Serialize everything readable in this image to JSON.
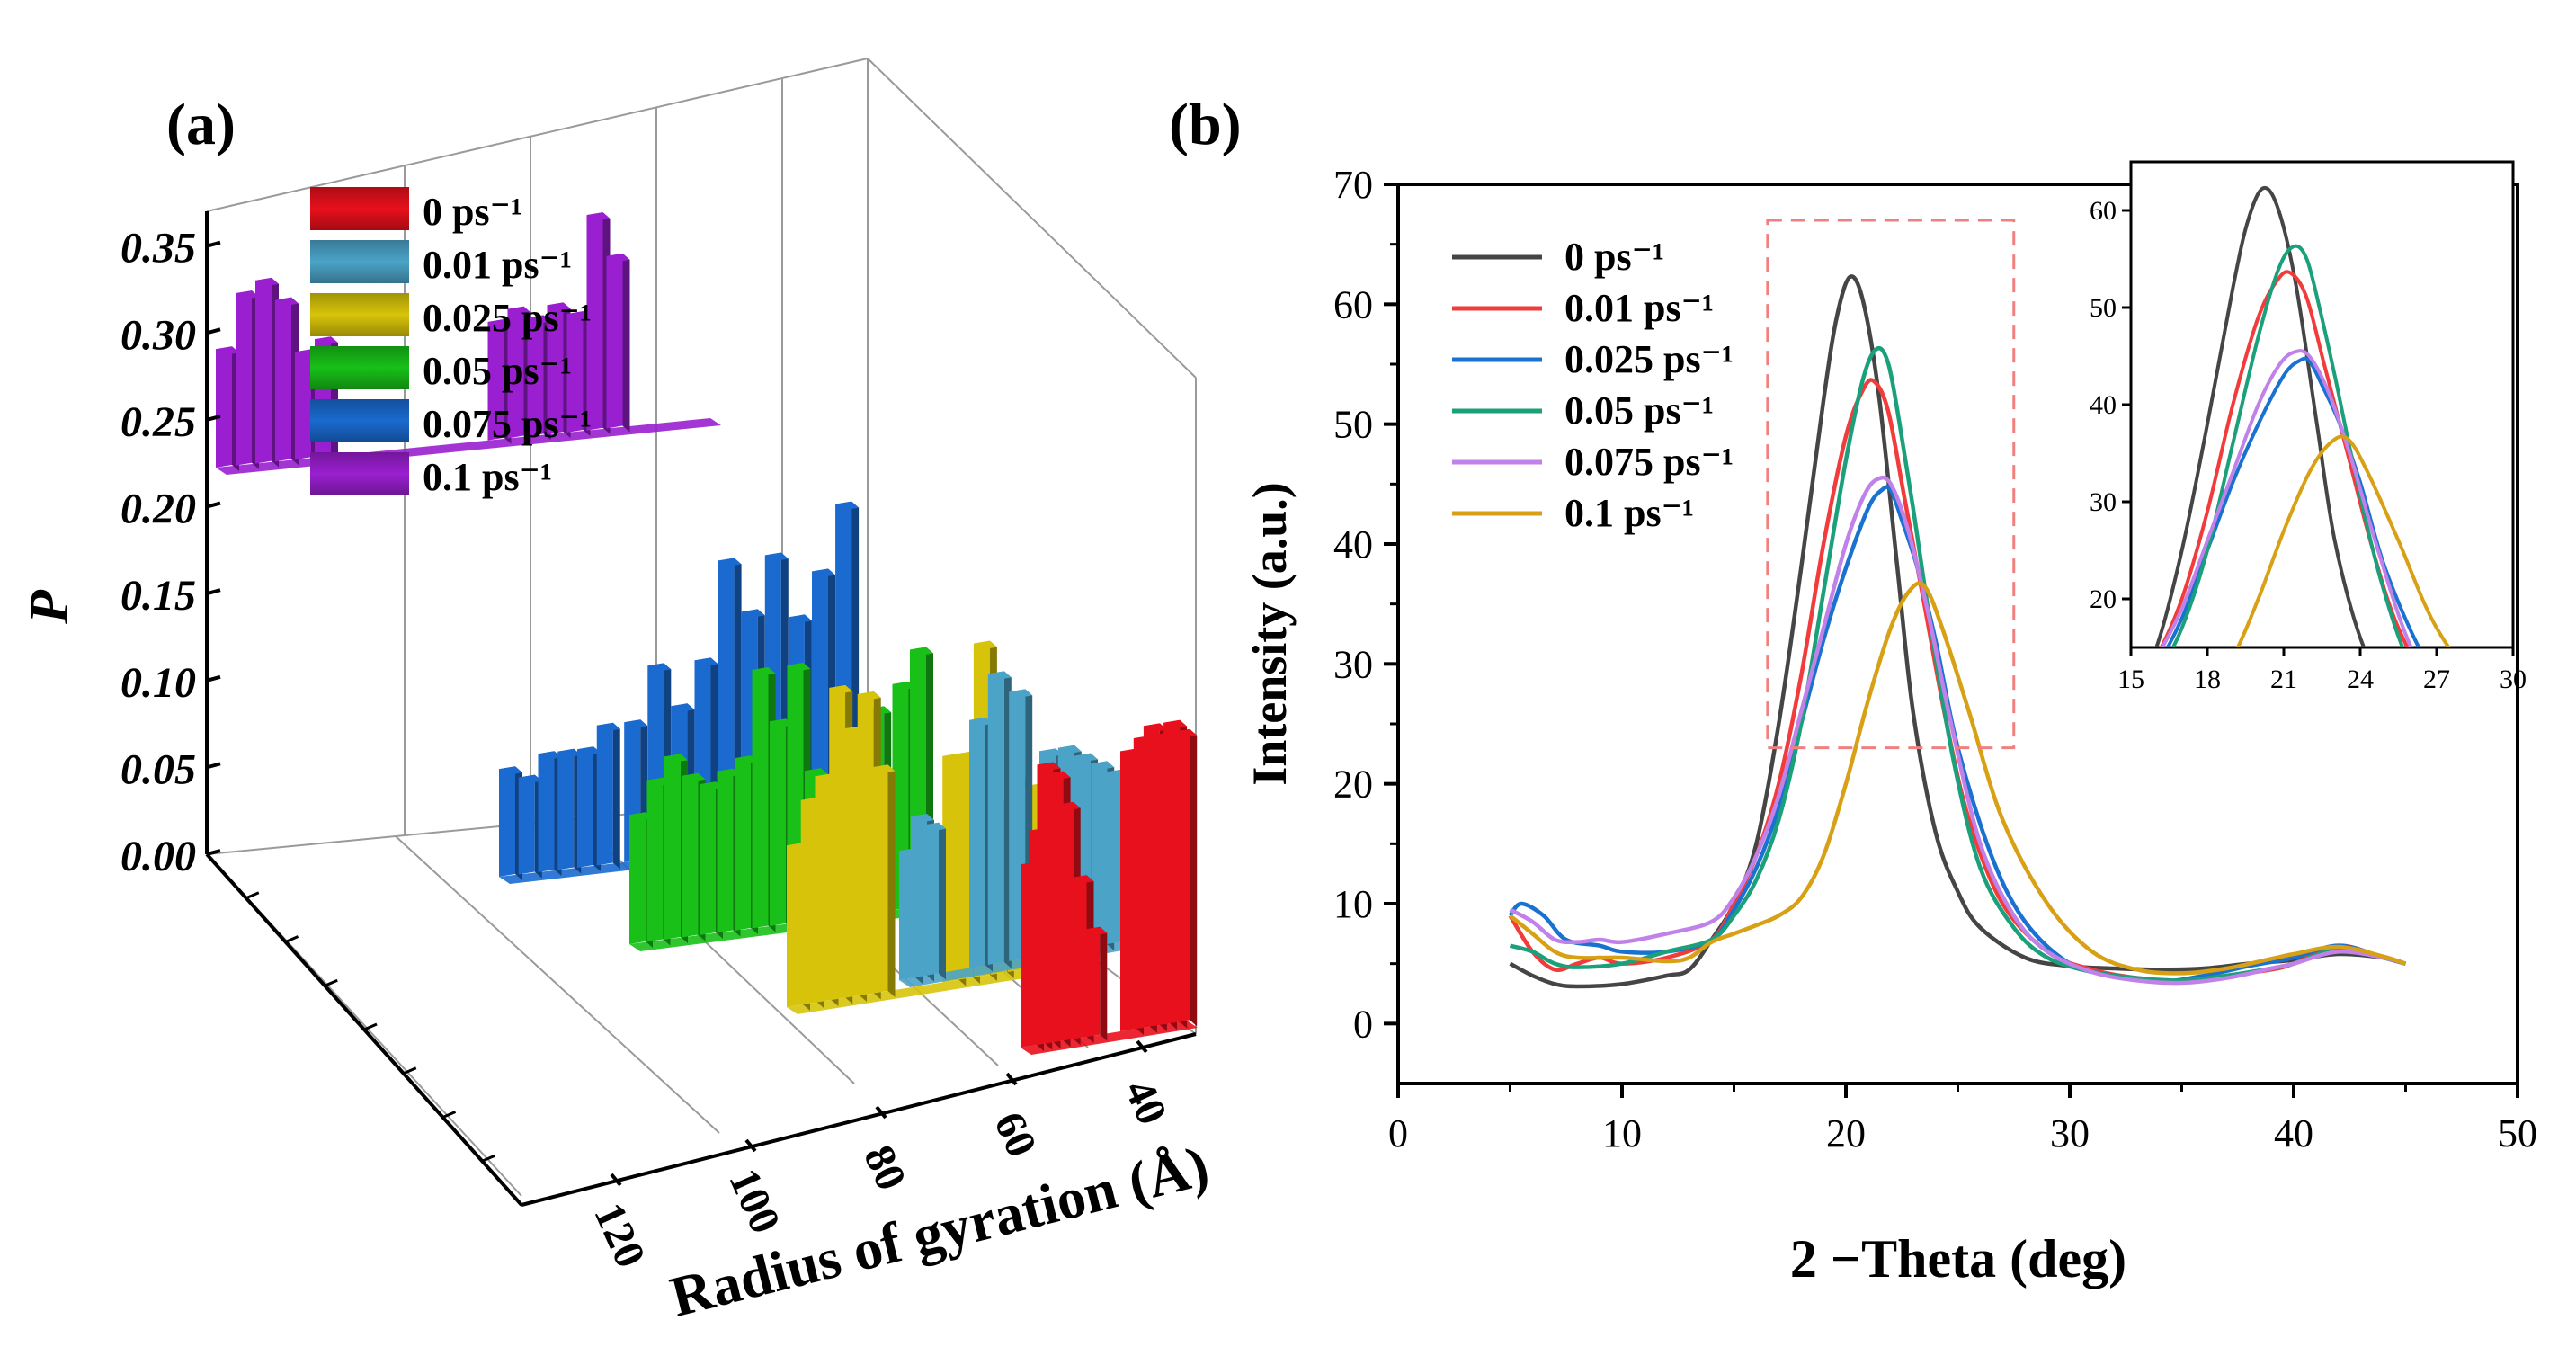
{
  "colors": {
    "0": "#e8101c",
    "0.01": "#4ba3c8",
    "0.025": "#d7c40a",
    "0.05": "#18c018",
    "0.075": "#1a6ad0",
    "0.1": "#9a1fd0",
    "axis": "#000000",
    "inset_box": "#f08080"
  },
  "chart_data": [
    {
      "panel": "(a)",
      "type": "bar",
      "subtype": "3d-bar-waterfall",
      "zlabel": "P",
      "ylabel": "Radius of gyration (Å)",
      "z_ticks": [
        "0.00",
        "0.05",
        "0.10",
        "0.15",
        "0.20",
        "0.25",
        "0.30",
        "0.35"
      ],
      "y_ticks": [
        "40",
        "60",
        "80",
        "100",
        "120"
      ],
      "zlim": [
        0,
        0.37
      ],
      "legend_position": "top-left",
      "series": [
        {
          "name": "0 ps⁻¹",
          "color_key": "0",
          "bars": [
            [
              0.0,
              0.17
            ],
            [
              0.05,
              0.2
            ],
            [
              0.1,
              0.26
            ],
            [
              0.16,
              0.25
            ],
            [
              0.22,
              0.22
            ],
            [
              0.3,
              0.15
            ],
            [
              0.38,
              0.1
            ],
            [
              0.6,
              0.26
            ],
            [
              0.68,
              0.27
            ],
            [
              0.74,
              0.28
            ],
            [
              0.8,
              0.27
            ],
            [
              0.86,
              0.28
            ],
            [
              0.92,
              0.27
            ]
          ]
        },
        {
          "name": "0.01 ps⁻¹",
          "color_key": "0.01",
          "bars": [
            [
              0.0,
              0.12
            ],
            [
              0.05,
              0.15
            ],
            [
              0.1,
              0.14
            ],
            [
              0.3,
              0.23
            ],
            [
              0.38,
              0.27
            ],
            [
              0.47,
              0.25
            ],
            [
              0.6,
              0.19
            ],
            [
              0.68,
              0.19
            ],
            [
              0.75,
              0.18
            ],
            [
              0.82,
              0.17
            ],
            [
              0.88,
              0.16
            ]
          ]
        },
        {
          "name": "0.025 ps⁻¹",
          "color_key": "0.025",
          "bars": [
            [
              0.0,
              0.15
            ],
            [
              0.05,
              0.19
            ],
            [
              0.1,
              0.21
            ],
            [
              0.15,
              0.29
            ],
            [
              0.2,
              0.25
            ],
            [
              0.25,
              0.28
            ],
            [
              0.3,
              0.21
            ],
            [
              0.55,
              0.21
            ],
            [
              0.6,
              0.21
            ],
            [
              0.66,
              0.31
            ],
            [
              0.72,
              0.16
            ],
            [
              0.78,
              0.18
            ],
            [
              0.84,
              0.17
            ]
          ]
        },
        {
          "name": "0.05 ps⁻¹",
          "color_key": "0.05",
          "bars": [
            [
              0.0,
              0.12
            ],
            [
              0.05,
              0.15
            ],
            [
              0.1,
              0.17
            ],
            [
              0.15,
              0.15
            ],
            [
              0.2,
              0.14
            ],
            [
              0.25,
              0.15
            ],
            [
              0.3,
              0.16
            ],
            [
              0.35,
              0.24
            ],
            [
              0.4,
              0.19
            ],
            [
              0.45,
              0.24
            ],
            [
              0.5,
              0.14
            ],
            [
              0.68,
              0.19
            ],
            [
              0.75,
              0.21
            ],
            [
              0.8,
              0.24
            ]
          ]
        },
        {
          "name": "0.075 ps⁻¹",
          "color_key": "0.075",
          "bars": [
            [
              0.0,
              0.1
            ],
            [
              0.05,
              0.09
            ],
            [
              0.1,
              0.11
            ],
            [
              0.15,
              0.11
            ],
            [
              0.2,
              0.11
            ],
            [
              0.25,
              0.13
            ],
            [
              0.32,
              0.13
            ],
            [
              0.38,
              0.18
            ],
            [
              0.44,
              0.14
            ],
            [
              0.5,
              0.18
            ],
            [
              0.56,
              0.27
            ],
            [
              0.62,
              0.22
            ],
            [
              0.68,
              0.27
            ],
            [
              0.74,
              0.21
            ],
            [
              0.8,
              0.25
            ],
            [
              0.86,
              0.31
            ]
          ]
        },
        {
          "name": "0.1 ps⁻¹",
          "color_key": "0.1",
          "bars": [
            [
              0.0,
              0.11
            ],
            [
              0.04,
              0.16
            ],
            [
              0.08,
              0.17
            ],
            [
              0.12,
              0.15
            ],
            [
              0.16,
              0.1
            ],
            [
              0.2,
              0.11
            ],
            [
              0.55,
              0.11
            ],
            [
              0.59,
              0.12
            ],
            [
              0.63,
              0.11
            ],
            [
              0.67,
              0.12
            ],
            [
              0.71,
              0.11
            ],
            [
              0.75,
              0.2
            ],
            [
              0.79,
              0.16
            ]
          ]
        }
      ]
    },
    {
      "panel": "(b)",
      "type": "line",
      "xlabel": "2 −Theta (deg)",
      "ylabel": "Intensity (a.u.)",
      "xlim": [
        0,
        50
      ],
      "ylim": [
        -5,
        70
      ],
      "x_ticks": [
        "0",
        "10",
        "20",
        "30",
        "40",
        "50"
      ],
      "y_ticks": [
        "0",
        "10",
        "20",
        "30",
        "40",
        "50",
        "60",
        "70"
      ],
      "legend_position": "top-left",
      "series": [
        {
          "name": "0 ps⁻¹",
          "color": "#454545",
          "x": [
            5,
            6,
            7,
            8,
            10,
            12,
            13,
            14,
            15,
            16,
            17,
            18,
            19,
            19.6,
            20.2,
            20.8,
            21.5,
            22.3,
            23,
            24,
            25,
            26,
            28,
            30,
            32,
            34,
            36,
            38,
            40,
            42,
            44,
            45
          ],
          "y": [
            5,
            4,
            3.3,
            3.1,
            3.3,
            4,
            4.5,
            7,
            10,
            15,
            25,
            38,
            52,
            59,
            62.3,
            60,
            52,
            38,
            26,
            16,
            11,
            8,
            5.5,
            4.8,
            4.6,
            4.5,
            4.6,
            5,
            5.3,
            5.8,
            5.5,
            5
          ]
        },
        {
          "name": "0.01 ps⁻¹",
          "color": "#f23b3b",
          "x": [
            5,
            6,
            7,
            8,
            9,
            10,
            12,
            14,
            15,
            16,
            17,
            18,
            19,
            20,
            20.8,
            21.3,
            21.9,
            22.6,
            23.5,
            24.5,
            25.5,
            27,
            29,
            31,
            33,
            35,
            37,
            39,
            40,
            42,
            44,
            45
          ],
          "y": [
            9,
            6,
            4.5,
            5,
            5.5,
            5,
            5.5,
            7,
            10,
            14,
            20,
            29,
            40,
            49,
            53,
            53.5,
            51,
            44,
            35,
            25,
            17,
            10,
            6,
            4.5,
            3.8,
            3.5,
            4,
            4.5,
            5,
            6.5,
            5.5,
            5
          ]
        },
        {
          "name": "0.025 ps⁻¹",
          "color": "#1a72d0",
          "x": [
            5,
            5.5,
            6.5,
            7.5,
            9,
            10,
            12,
            14,
            15,
            16,
            17,
            18,
            19,
            20,
            21,
            21.6,
            22,
            22.5,
            23.2,
            24,
            25,
            26.5,
            28,
            30,
            32,
            34,
            36,
            38,
            40,
            42,
            44,
            45
          ],
          "y": [
            9,
            10,
            9,
            7,
            6.5,
            6,
            6,
            7,
            9.5,
            13,
            18,
            25,
            32,
            38,
            43,
            44.5,
            44.5,
            42,
            38,
            32,
            23,
            14,
            8.5,
            5,
            4,
            3.5,
            4,
            4.8,
            5.5,
            6.5,
            5.5,
            5
          ]
        },
        {
          "name": "0.05 ps⁻¹",
          "color": "#1aa07a",
          "x": [
            5,
            6,
            7,
            8,
            10,
            12,
            14,
            15,
            16,
            17,
            18,
            19,
            20,
            20.8,
            21.4,
            21.9,
            22.4,
            23,
            23.8,
            24.8,
            26,
            27.5,
            29,
            31,
            33,
            35,
            37,
            39,
            40,
            42,
            44,
            45
          ],
          "y": [
            6.5,
            6,
            5,
            4.7,
            5,
            6,
            7,
            9,
            12,
            17,
            25,
            36,
            47,
            54,
            56.3,
            55,
            50,
            43,
            33,
            22,
            13,
            8,
            5.5,
            4.3,
            3.8,
            3.6,
            4,
            4.6,
            5,
            6.2,
            5.5,
            5
          ]
        },
        {
          "name": "0.075 ps⁻¹",
          "color": "#c082e8",
          "x": [
            5,
            6,
            7,
            8,
            9,
            10,
            12,
            14,
            15,
            16,
            17,
            18,
            19,
            20,
            20.8,
            21.4,
            22,
            22.8,
            23.7,
            24.7,
            26,
            27.5,
            29,
            31,
            33,
            35,
            37,
            39,
            40,
            42,
            44,
            45
          ],
          "y": [
            9.5,
            8.5,
            7,
            6.8,
            7,
            6.8,
            7.5,
            8.5,
            10.5,
            14,
            19,
            26,
            33,
            40,
            44,
            45.4,
            45,
            41,
            34,
            25,
            15,
            9,
            6,
            4.3,
            3.6,
            3.4,
            3.8,
            4.6,
            5,
            6,
            5.5,
            5
          ]
        },
        {
          "name": "0.1 ps⁻¹",
          "color": "#d8a014",
          "x": [
            5,
            6,
            7,
            8,
            10,
            12,
            13,
            14,
            15,
            16,
            17,
            18,
            19,
            20,
            21,
            22,
            22.8,
            23.5,
            24.3,
            25.5,
            27,
            29,
            31,
            33,
            35,
            37,
            39,
            40,
            42,
            44,
            45
          ],
          "y": [
            9,
            7.5,
            6,
            5.5,
            5.5,
            5.2,
            5.5,
            6.8,
            7.5,
            8.2,
            9,
            10.5,
            14,
            20,
            27,
            33,
            36,
            36.5,
            33,
            26,
            17,
            10,
            6,
            4.5,
            4.2,
            4.6,
            5.4,
            5.8,
            6.4,
            5.6,
            5
          ]
        }
      ],
      "inset": {
        "xlim": [
          15,
          30
        ],
        "ylim": [
          15,
          65
        ],
        "x_ticks": [
          "15",
          "18",
          "21",
          "24",
          "27",
          "30"
        ],
        "y_ticks": [
          "20",
          "30",
          "40",
          "50",
          "60"
        ],
        "zoom_xlim": [
          16.5,
          27.5
        ],
        "zoom_ylim": [
          23,
          67
        ]
      }
    }
  ],
  "labels": {
    "panel_a": "(a)",
    "panel_b": "(b)",
    "legend_a": [
      "0 ps⁻¹",
      "0.01 ps⁻¹",
      "0.025 ps⁻¹",
      "0.05 ps⁻¹",
      "0.075 ps⁻¹",
      "0.1 ps⁻¹"
    ],
    "legend_b": [
      "0 ps⁻¹",
      "0.01 ps⁻¹",
      "0.025 ps⁻¹",
      "0.05 ps⁻¹",
      "0.075 ps⁻¹",
      "0.1 ps⁻¹"
    ]
  }
}
